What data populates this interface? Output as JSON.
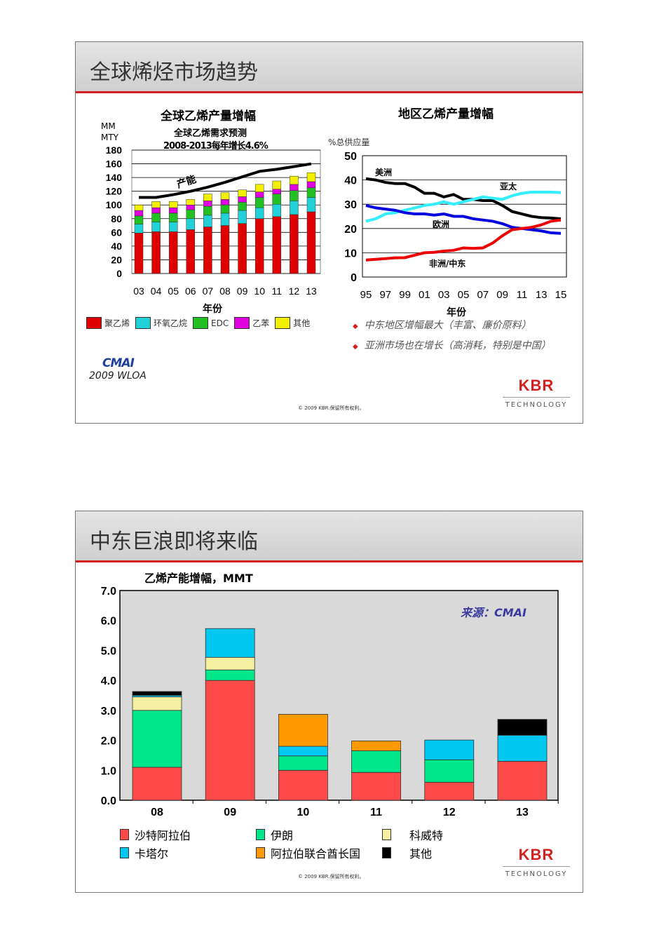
{
  "slide1": {
    "title": "全球烯烃市场趋势",
    "chart_data": [
      {
        "type": "bar",
        "stacked": true,
        "title": "全球乙烯产量增幅",
        "subtitle1": "全球乙烯需求预测",
        "subtitle2": "2008-2013每年增长4.6%",
        "ylabel": "MM MTY",
        "ylabel_line1": "MM",
        "ylabel_line2": "MTY",
        "xlabel": "年份",
        "ylim": [
          0,
          180
        ],
        "yticks": [
          0,
          20,
          40,
          60,
          80,
          100,
          120,
          140,
          160,
          180
        ],
        "categories": [
          "03",
          "04",
          "05",
          "06",
          "07",
          "08",
          "09",
          "10",
          "11",
          "12",
          "13"
        ],
        "series": [
          {
            "name": "聚乙烯",
            "color": "#e00000",
            "values": [
              59,
              61,
              61,
              64,
              68,
              70,
              73,
              80,
              83,
              86,
              90
            ]
          },
          {
            "name": "环氧乙烷",
            "color": "#22d0d8",
            "values": [
              13,
              14,
              14,
              16,
              17,
              18,
              19,
              16,
              18,
              20,
              21
            ]
          },
          {
            "name": "EDC",
            "color": "#22c022",
            "values": [
              12,
              13,
              13,
              13,
              13,
              12,
              12,
              15,
              15,
              15,
              14
            ]
          },
          {
            "name": "乙苯",
            "color": "#e000e0",
            "values": [
              8,
              8,
              8,
              7,
              8,
              8,
              8,
              8,
              7,
              9,
              9
            ]
          },
          {
            "name": "其他",
            "color": "#f0f000",
            "values": [
              8,
              9,
              9,
              8,
              10,
              10,
              10,
              11,
              12,
              12,
              13
            ]
          }
        ],
        "line": {
          "label": "产能",
          "color": "#000000",
          "values": [
            111,
            111,
            115,
            120,
            126,
            133,
            141,
            149,
            152,
            156,
            160
          ]
        },
        "grid": true,
        "legend": "bottom"
      },
      {
        "type": "line",
        "title": "地区乙烯产量增幅",
        "ylabel": "%总供应量",
        "xlabel": "年份",
        "ylim": [
          0,
          50
        ],
        "yticks": [
          0,
          10,
          20,
          30,
          40,
          50
        ],
        "x": [
          1995,
          1996,
          1997,
          1998,
          1999,
          2000,
          2001,
          2002,
          2003,
          2004,
          2005,
          2006,
          2007,
          2008,
          2009,
          2010,
          2011,
          2012,
          2013,
          2014,
          2015
        ],
        "xticklabels": [
          "95",
          "97",
          "99",
          "01",
          "03",
          "05",
          "07",
          "09",
          "11",
          "13",
          "15"
        ],
        "series": [
          {
            "name": "美洲",
            "color": "#000000",
            "values": [
              40.5,
              40,
              39,
              38.5,
              38.5,
              37,
              34.5,
              34.5,
              33,
              34,
              32,
              32,
              31.5,
              31.5,
              29.5,
              27,
              26,
              25,
              24.5,
              24.3,
              24
            ]
          },
          {
            "name": "亚太",
            "color": "#33eeff",
            "values": [
              23,
              24,
              26,
              26.5,
              27.5,
              28.5,
              29.5,
              30,
              31,
              30,
              31,
              32,
              33,
              32.5,
              32,
              33.5,
              34.5,
              35,
              35,
              35,
              34.8
            ]
          },
          {
            "name": "欧洲",
            "color": "#0000e0",
            "values": [
              29.5,
              28.5,
              28,
              27.5,
              26.5,
              26,
              26,
              25.5,
              26,
              25,
              25,
              24,
              23.5,
              23,
              22,
              20.5,
              20,
              19.5,
              19,
              18.2,
              18
            ]
          },
          {
            "name": "非洲/中东",
            "color": "#ee0000",
            "values": [
              7,
              7.3,
              7.6,
              7.9,
              8,
              9,
              10,
              10.2,
              10.7,
              11,
              12,
              11.8,
              12,
              14,
              17,
              19.5,
              20,
              20.5,
              21.5,
              23,
              23.5
            ]
          }
        ],
        "grid": true,
        "legend": "inline labels"
      }
    ],
    "bullets": [
      "中东地区增幅最大（丰富、廉价原料）",
      "亚洲市场也在增长（高消耗，特别是中国）"
    ],
    "cmai_logo": "CMAI",
    "source": "2009 WLOA",
    "kbr": "KBR",
    "kbr_sub": "TECHNOLOGY",
    "copyright": "© 2009 KBR.保留所有权利。"
  },
  "slide2": {
    "title": "中东巨浪即将来临",
    "source_label": "来源：CMAI",
    "chart_data": {
      "type": "bar",
      "stacked": true,
      "title": "乙烯产能增幅，MMT",
      "ylim": [
        0,
        7
      ],
      "yticks": [
        "0.0",
        "1.0",
        "2.0",
        "3.0",
        "4.0",
        "5.0",
        "6.0",
        "7.0"
      ],
      "categories": [
        "08",
        "09",
        "10",
        "11",
        "12",
        "13"
      ],
      "series": [
        {
          "name": "沙特阿拉伯",
          "color": "#ff4a4a",
          "values": [
            1.1,
            4.0,
            1.0,
            0.93,
            0.6,
            1.3
          ]
        },
        {
          "name": "伊朗",
          "color": "#00e68a",
          "values": [
            1.9,
            0.35,
            0.48,
            0.72,
            0.75,
            0
          ]
        },
        {
          "name": "科威特",
          "color": "#f5f0a0",
          "values": [
            0.45,
            0.42,
            0,
            0,
            0,
            0
          ]
        },
        {
          "name": "卡塔尔",
          "color": "#00c8f0",
          "values": [
            0.05,
            0.96,
            0.32,
            0,
            0.66,
            0.87
          ]
        },
        {
          "name": "阿拉伯联合酋长国",
          "color": "#ff9900",
          "values": [
            0,
            0,
            1.07,
            0.33,
            0,
            0
          ]
        },
        {
          "name": "其他",
          "color": "#000000",
          "values": [
            0.13,
            0,
            0,
            0,
            0,
            0.53
          ]
        }
      ],
      "background": "#d9d9d9",
      "legend": "bottom"
    },
    "kbr": "KBR",
    "kbr_sub": "TECHNOLOGY",
    "copyright": "© 2009 KBR.保留所有权利。"
  }
}
